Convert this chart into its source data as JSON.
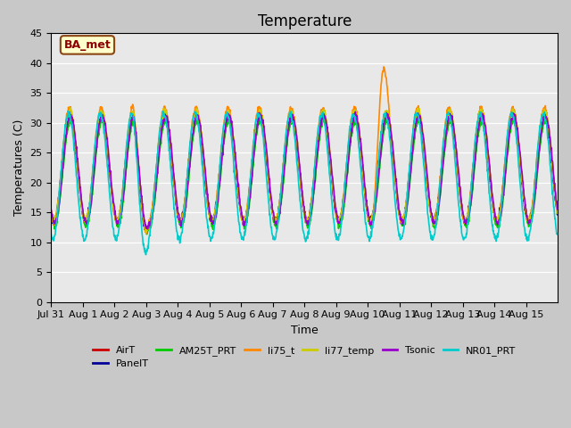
{
  "title": "Temperature",
  "ylabel": "Temperatures (C)",
  "xlabel": "Time",
  "ylim": [
    0,
    45
  ],
  "yticks": [
    0,
    5,
    10,
    15,
    20,
    25,
    30,
    35,
    40,
    45
  ],
  "bg_color": "#e8e8e8",
  "annotation_text": "BA_met",
  "annotation_bg": "#ffffcc",
  "annotation_border": "#8b4513",
  "series": {
    "AirT": {
      "color": "#cc0000",
      "lw": 1.2
    },
    "PanelT": {
      "color": "#000099",
      "lw": 1.2
    },
    "AM25T_PRT": {
      "color": "#00cc00",
      "lw": 1.2
    },
    "li75_t": {
      "color": "#ff8800",
      "lw": 1.2
    },
    "li77_temp": {
      "color": "#cccc00",
      "lw": 1.2
    },
    "Tsonic": {
      "color": "#9900cc",
      "lw": 1.2
    },
    "NR01_PRT": {
      "color": "#00cccc",
      "lw": 1.2
    }
  },
  "legend_order": [
    "AirT",
    "PanelT",
    "AM25T_PRT",
    "li75_t",
    "li77_temp",
    "Tsonic",
    "NR01_PRT"
  ],
  "xtick_positions": [
    0,
    1,
    2,
    3,
    4,
    5,
    6,
    7,
    8,
    9,
    10,
    11,
    12,
    13,
    14,
    15
  ],
  "xtick_labels": [
    "Jul 31",
    "Aug 1",
    "Aug 2",
    "Aug 3",
    "Aug 4",
    "Aug 5",
    "Aug 6",
    "Aug 7",
    "Aug 8",
    "Aug 9",
    "Aug 10",
    "Aug 11",
    "Aug 12",
    "Aug 13",
    "Aug 14",
    "Aug 15"
  ],
  "title_fontsize": 12,
  "axis_fontsize": 9,
  "tick_fontsize": 8
}
